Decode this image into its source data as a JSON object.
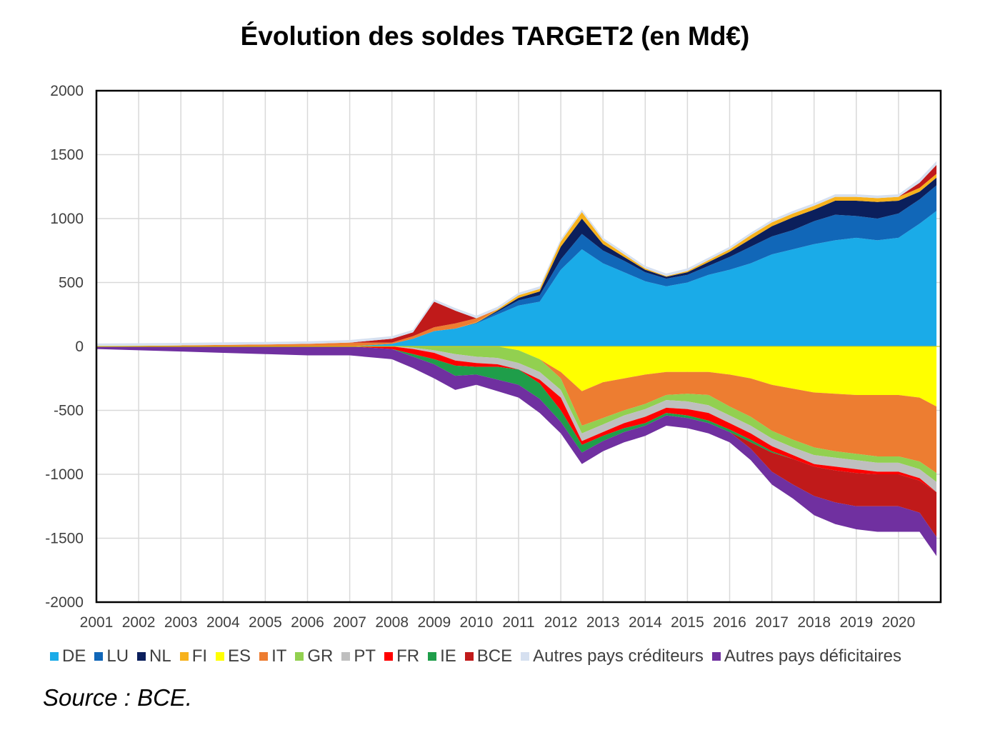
{
  "chart_data": {
    "type": "area",
    "title": "Évolution des soldes TARGET2 (en Md€)",
    "source": "Source : BCE.",
    "xlabel": "",
    "ylabel": "",
    "x_ticks": [
      "2001",
      "2002",
      "2003",
      "2004",
      "2005",
      "2006",
      "2007",
      "2008",
      "2009",
      "2010",
      "2011",
      "2012",
      "2013",
      "2014",
      "2015",
      "2016",
      "2017",
      "2018",
      "2019",
      "2020"
    ],
    "y_ticks": [
      "2000",
      "1500",
      "1000",
      "500",
      "0",
      "-500",
      "-1000",
      "-1500",
      "-2000"
    ],
    "ylim": [
      -2000,
      2000
    ],
    "xlim": [
      2001,
      2021
    ],
    "grid": true,
    "legend_position": "bottom",
    "x": [
      2001,
      2002,
      2003,
      2004,
      2005,
      2006,
      2007,
      2008,
      2008.5,
      2009,
      2009.5,
      2010,
      2010.5,
      2011,
      2011.5,
      2012,
      2012.5,
      2013,
      2013.5,
      2014,
      2014.5,
      2015,
      2015.5,
      2016,
      2016.5,
      2017,
      2017.5,
      2018,
      2018.5,
      2019,
      2019.5,
      2020,
      2020.5,
      2020.9
    ],
    "series": [
      {
        "name": "DE",
        "color": "#1aabe8",
        "side": "positive",
        "values": [
          0,
          0,
          0,
          0,
          0,
          0,
          0,
          20,
          60,
          120,
          140,
          180,
          250,
          320,
          350,
          600,
          760,
          650,
          580,
          510,
          470,
          500,
          560,
          600,
          650,
          720,
          760,
          800,
          830,
          850,
          830,
          850,
          960,
          1060
        ]
      },
      {
        "name": "LU",
        "color": "#1167b8",
        "side": "positive",
        "values": [
          0,
          0,
          0,
          0,
          0,
          0,
          0,
          0,
          0,
          0,
          0,
          5,
          20,
          40,
          50,
          80,
          120,
          100,
          90,
          70,
          60,
          60,
          70,
          100,
          130,
          140,
          150,
          180,
          200,
          170,
          170,
          190,
          190,
          200
        ]
      },
      {
        "name": "NL",
        "color": "#0b1f5c",
        "side": "positive",
        "values": [
          0,
          0,
          0,
          0,
          0,
          0,
          0,
          0,
          0,
          0,
          0,
          0,
          10,
          20,
          30,
          100,
          120,
          50,
          30,
          20,
          15,
          20,
          30,
          40,
          60,
          80,
          100,
          90,
          110,
          120,
          130,
          100,
          60,
          60
        ]
      },
      {
        "name": "FI",
        "color": "#f7b21c",
        "side": "positive",
        "values": [
          0,
          0,
          0,
          0,
          0,
          0,
          0,
          0,
          0,
          0,
          0,
          5,
          10,
          20,
          20,
          40,
          50,
          30,
          20,
          10,
          5,
          10,
          15,
          20,
          30,
          30,
          30,
          30,
          30,
          30,
          30,
          30,
          30,
          30
        ]
      },
      {
        "name": "IT",
        "color": "#ed7d31",
        "side": "positive",
        "values": [
          3,
          5,
          8,
          12,
          15,
          20,
          30,
          10,
          20,
          30,
          40,
          30,
          0,
          0,
          0,
          0,
          0,
          0,
          0,
          0,
          0,
          0,
          0,
          0,
          0,
          0,
          0,
          0,
          0,
          0,
          0,
          0,
          0,
          0
        ]
      },
      {
        "name": "BCE",
        "color": "#c01a1a",
        "side": "positive",
        "values": [
          0,
          0,
          0,
          0,
          0,
          0,
          0,
          30,
          30,
          200,
          100,
          0,
          0,
          0,
          0,
          0,
          0,
          0,
          0,
          0,
          0,
          0,
          0,
          0,
          0,
          0,
          0,
          0,
          0,
          0,
          0,
          0,
          40,
          70
        ]
      },
      {
        "name": "Autres pays créditeurs",
        "color": "#d6e0f0",
        "side": "positive",
        "values": [
          20,
          20,
          20,
          20,
          20,
          20,
          20,
          20,
          20,
          20,
          20,
          20,
          20,
          20,
          20,
          20,
          20,
          20,
          20,
          20,
          20,
          20,
          20,
          20,
          20,
          20,
          20,
          20,
          20,
          20,
          20,
          20,
          30,
          30
        ]
      },
      {
        "name": "ES",
        "color": "#ffff00",
        "side": "negative",
        "values": [
          0,
          0,
          0,
          0,
          0,
          0,
          0,
          0,
          0,
          0,
          0,
          0,
          0,
          30,
          100,
          200,
          350,
          280,
          250,
          220,
          200,
          200,
          200,
          220,
          250,
          300,
          330,
          360,
          370,
          380,
          380,
          380,
          400,
          470
        ]
      },
      {
        "name": "IT",
        "color": "#ed7d31",
        "side": "negative",
        "values": [
          0,
          0,
          0,
          0,
          0,
          0,
          0,
          0,
          0,
          0,
          0,
          0,
          0,
          0,
          0,
          50,
          270,
          280,
          250,
          230,
          180,
          170,
          180,
          250,
          300,
          360,
          400,
          430,
          450,
          460,
          480,
          480,
          500,
          520
        ]
      },
      {
        "name": "GR",
        "color": "#92d050",
        "side": "negative",
        "values": [
          0,
          0,
          0,
          0,
          0,
          0,
          0,
          0,
          10,
          30,
          60,
          80,
          90,
          100,
          100,
          90,
          60,
          50,
          40,
          40,
          40,
          60,
          80,
          70,
          70,
          60,
          60,
          60,
          50,
          50,
          50,
          50,
          60,
          70
        ]
      },
      {
        "name": "PT",
        "color": "#bfbfbf",
        "side": "negative",
        "values": [
          0,
          0,
          0,
          0,
          0,
          0,
          0,
          0,
          10,
          20,
          50,
          50,
          50,
          50,
          60,
          60,
          60,
          60,
          60,
          60,
          60,
          60,
          60,
          60,
          60,
          60,
          60,
          70,
          70,
          70,
          70,
          70,
          70,
          80
        ]
      },
      {
        "name": "FR",
        "color": "#ff0000",
        "side": "negative",
        "values": [
          0,
          0,
          0,
          0,
          0,
          0,
          0,
          20,
          40,
          50,
          40,
          30,
          20,
          0,
          30,
          100,
          30,
          30,
          40,
          50,
          40,
          50,
          60,
          50,
          50,
          40,
          30,
          20,
          30,
          30,
          20,
          20,
          20,
          0
        ]
      },
      {
        "name": "IE",
        "color": "#1f9e4a",
        "side": "negative",
        "values": [
          0,
          0,
          0,
          0,
          0,
          0,
          0,
          0,
          20,
          40,
          80,
          60,
          100,
          120,
          120,
          90,
          60,
          40,
          30,
          20,
          20,
          20,
          20,
          20,
          20,
          10,
          0,
          0,
          0,
          0,
          0,
          0,
          0,
          0
        ]
      },
      {
        "name": "BCE",
        "color": "#c01a1a",
        "side": "negative",
        "values": [
          0,
          0,
          0,
          0,
          0,
          0,
          0,
          0,
          0,
          0,
          0,
          0,
          0,
          0,
          0,
          0,
          0,
          0,
          0,
          0,
          0,
          0,
          0,
          0,
          50,
          150,
          200,
          230,
          250,
          260,
          250,
          250,
          250,
          350
        ]
      },
      {
        "name": "Autres pays déficitaires",
        "color": "#7030a0",
        "side": "negative",
        "values": [
          20,
          30,
          40,
          50,
          60,
          70,
          70,
          80,
          90,
          110,
          110,
          80,
          90,
          100,
          110,
          90,
          90,
          80,
          80,
          80,
          80,
          80,
          80,
          80,
          90,
          100,
          110,
          150,
          170,
          180,
          200,
          200,
          150,
          150
        ]
      }
    ],
    "legend": [
      {
        "label": "DE",
        "color": "#1aabe8"
      },
      {
        "label": "LU",
        "color": "#1167b8"
      },
      {
        "label": "NL",
        "color": "#0b1f5c"
      },
      {
        "label": "FI",
        "color": "#f7b21c"
      },
      {
        "label": "ES",
        "color": "#ffff00"
      },
      {
        "label": "IT",
        "color": "#ed7d31"
      },
      {
        "label": "GR",
        "color": "#92d050"
      },
      {
        "label": "PT",
        "color": "#bfbfbf"
      },
      {
        "label": "FR",
        "color": "#ff0000"
      },
      {
        "label": "IE",
        "color": "#1f9e4a"
      },
      {
        "label": "BCE",
        "color": "#c01a1a"
      },
      {
        "label": "Autres pays créditeurs",
        "color": "#d6e0f0"
      },
      {
        "label": "Autres pays déficitaires",
        "color": "#7030a0"
      }
    ]
  }
}
